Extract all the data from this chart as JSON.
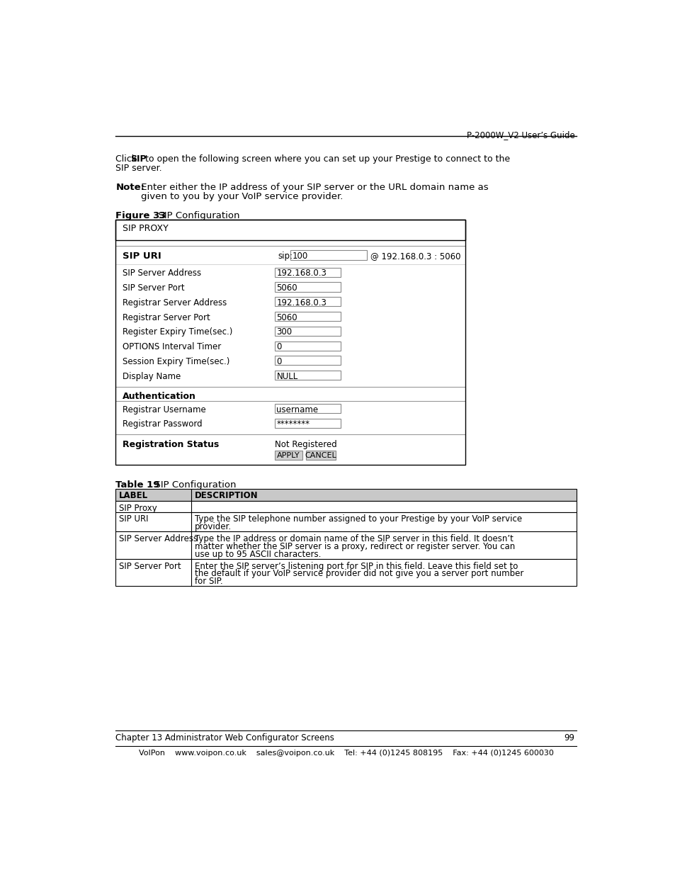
{
  "page_header_right": "P-2000W_V2 User’s Guide",
  "figure_label": "Figure 33",
  "figure_title": "   SIP Configuration",
  "sip_proxy_label": "SIP PROXY",
  "sip_uri_label": "SIP URI",
  "sip_prefix": "sip:",
  "sip_field_value": "100",
  "sip_suffix": "@ 192.168.0.3 : 5060",
  "fields": [
    {
      "label": "SIP Server Address",
      "value": "192.168.0.3"
    },
    {
      "label": "SIP Server Port",
      "value": "5060"
    },
    {
      "label": "Registrar Server Address",
      "value": "192.168.0.3"
    },
    {
      "label": "Registrar Server Port",
      "value": "5060"
    },
    {
      "label": "Register Expiry Time(sec.)",
      "value": "300"
    },
    {
      "label": "OPTIONS Interval Timer",
      "value": "0"
    },
    {
      "label": "Session Expiry Time(sec.)",
      "value": "0"
    },
    {
      "label": "Display Name",
      "value": "NULL"
    }
  ],
  "auth_label": "Authentication",
  "auth_fields": [
    {
      "label": "Registrar Username",
      "value": "username"
    },
    {
      "label": "Registrar Password",
      "value": "********"
    }
  ],
  "reg_status_label": "Registration Status",
  "reg_status_value": "Not Registered",
  "btn_apply": "APPLY",
  "btn_cancel": "CANCEL",
  "table_label": "Table 19",
  "table_title": "   SIP Configuration",
  "table_header": [
    "LABEL",
    "DESCRIPTION"
  ],
  "table_rows": [
    [
      "SIP Proxy",
      ""
    ],
    [
      "SIP URI",
      "Type the SIP telephone number assigned to your Prestige by your VoIP service\nprovider."
    ],
    [
      "SIP Server Address",
      "Type the IP address or domain name of the SIP server in this field. It doesn’t\nmatter whether the SIP server is a proxy, redirect or register server. You can\nuse up to 95 ASCII characters."
    ],
    [
      "SIP Server Port",
      "Enter the SIP server’s listening port for SIP in this field. Leave this field set to\nthe default if your VoIP service provider did not give you a server port number\nfor SIP."
    ]
  ],
  "footer_chapter": "Chapter 13 Administrator Web Configurator Screens",
  "footer_page": "99",
  "footer_voipon": "VoIPon    www.voipon.co.uk    sales@voipon.co.uk    Tel: +44 (0)1245 808195    Fax: +44 (0)1245 600030",
  "bg_color": "#ffffff"
}
